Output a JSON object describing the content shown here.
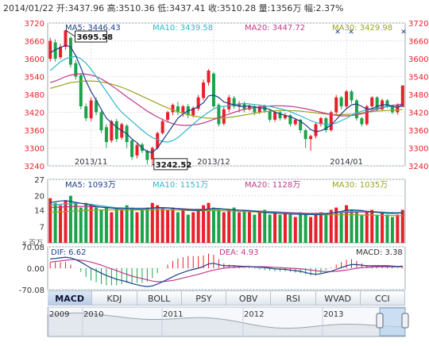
{
  "header": {
    "date": "2014/01/22",
    "open_label": "开:",
    "open": "3437.96",
    "high_label": "高:",
    "high": "3510.36",
    "low_label": "低:",
    "low": "3437.41",
    "close_label": "收:",
    "close": "3510.28",
    "volume_label": "量:",
    "volume": "1356万",
    "change_label": "幅:",
    "change": "2.37%"
  },
  "colors": {
    "up": "#e8202a",
    "down": "#1aa34a",
    "ma5": "#1c3f8a",
    "ma10": "#2fb7c8",
    "ma20": "#c03a8a",
    "ma30": "#9aa41e",
    "dif": "#1c3f8a",
    "dea": "#c03a8a"
  },
  "price_panel": {
    "legend": [
      {
        "label": "MA5: 3446.43",
        "color": "#1c3f8a"
      },
      {
        "label": "MA10: 3439.58",
        "color": "#2fb7c8"
      },
      {
        "label": "MA20: 3447.72",
        "color": "#c03a8a"
      },
      {
        "label": "MA30: 3429.98",
        "color": "#9aa41e"
      }
    ],
    "high_callout": "3695.58",
    "low_callout": "3242.52"
  },
  "volume_panel": {
    "legend": [
      {
        "label": "MA5: 1093万",
        "color": "#1c3f8a"
      },
      {
        "label": "MA10: 1151万",
        "color": "#2fb7c8"
      },
      {
        "label": "MA20: 1128万",
        "color": "#c03a8a"
      },
      {
        "label": "MA30: 1035万",
        "color": "#9aa41e"
      }
    ],
    "unit_label": "x 百万"
  },
  "macd_panel": {
    "dif_label": "DIF: 6.62",
    "dea_label": "DEA: 4.93",
    "macd_label": "MACD: 3.38"
  },
  "tabs": [
    "MACD",
    "KDJ",
    "BOLL",
    "PSY",
    "OBV",
    "RSI",
    "WVAD",
    "CCI"
  ],
  "overview": {
    "years": [
      "2009",
      "2010",
      "2011",
      "2012",
      "2013"
    ]
  },
  "chart_data": [
    {
      "type": "candlestick",
      "ylim": [
        3240,
        3720
      ],
      "yticks": [
        3240,
        3300,
        3360,
        3420,
        3480,
        3540,
        3600,
        3660,
        3720
      ],
      "xticks": [
        "2013/11",
        "2013/12",
        "2014/01"
      ],
      "xtick_index": [
        8,
        32,
        58
      ],
      "candles": [
        [
          3600,
          3660,
          3590,
          3670
        ],
        [
          3655,
          3600,
          3590,
          3665
        ],
        [
          3605,
          3640,
          3598,
          3650
        ],
        [
          3640,
          3695,
          3630,
          3696
        ],
        [
          3670,
          3580,
          3570,
          3675
        ],
        [
          3585,
          3540,
          3530,
          3595
        ],
        [
          3545,
          3440,
          3430,
          3550
        ],
        [
          3440,
          3400,
          3390,
          3450
        ],
        [
          3400,
          3460,
          3390,
          3470
        ],
        [
          3460,
          3420,
          3410,
          3470
        ],
        [
          3420,
          3360,
          3350,
          3425
        ],
        [
          3370,
          3320,
          3300,
          3380
        ],
        [
          3325,
          3390,
          3318,
          3395
        ],
        [
          3390,
          3330,
          3320,
          3398
        ],
        [
          3335,
          3380,
          3328,
          3385
        ],
        [
          3375,
          3320,
          3300,
          3380
        ],
        [
          3325,
          3270,
          3260,
          3330
        ],
        [
          3275,
          3310,
          3265,
          3318
        ],
        [
          3312,
          3290,
          3282,
          3318
        ],
        [
          3290,
          3260,
          3245,
          3295
        ],
        [
          3262,
          3300,
          3243,
          3305
        ],
        [
          3300,
          3350,
          3295,
          3355
        ],
        [
          3350,
          3390,
          3345,
          3398
        ],
        [
          3395,
          3420,
          3385,
          3425
        ],
        [
          3420,
          3445,
          3410,
          3450
        ],
        [
          3440,
          3420,
          3410,
          3455
        ],
        [
          3420,
          3440,
          3405,
          3445
        ],
        [
          3440,
          3410,
          3400,
          3448
        ],
        [
          3410,
          3435,
          3402,
          3440
        ],
        [
          3432,
          3470,
          3425,
          3478
        ],
        [
          3468,
          3520,
          3460,
          3530
        ],
        [
          3520,
          3560,
          3510,
          3565
        ],
        [
          3550,
          3440,
          3435,
          3555
        ],
        [
          3445,
          3380,
          3372,
          3450
        ],
        [
          3382,
          3430,
          3376,
          3438
        ],
        [
          3430,
          3470,
          3420,
          3478
        ],
        [
          3468,
          3440,
          3432,
          3475
        ],
        [
          3440,
          3450,
          3420,
          3458
        ],
        [
          3450,
          3430,
          3420,
          3456
        ],
        [
          3430,
          3440,
          3425,
          3445
        ],
        [
          3440,
          3420,
          3410,
          3448
        ],
        [
          3420,
          3440,
          3414,
          3446
        ],
        [
          3440,
          3425,
          3418,
          3446
        ],
        [
          3425,
          3395,
          3388,
          3430
        ],
        [
          3395,
          3420,
          3388,
          3426
        ],
        [
          3420,
          3400,
          3392,
          3425
        ],
        [
          3400,
          3410,
          3395,
          3418
        ],
        [
          3410,
          3380,
          3372,
          3414
        ],
        [
          3380,
          3395,
          3375,
          3400
        ],
        [
          3395,
          3360,
          3350,
          3398
        ],
        [
          3360,
          3330,
          3300,
          3365
        ],
        [
          3330,
          3340,
          3290,
          3345
        ],
        [
          3340,
          3380,
          3332,
          3385
        ],
        [
          3380,
          3400,
          3372,
          3405
        ],
        [
          3400,
          3360,
          3352,
          3404
        ],
        [
          3360,
          3420,
          3355,
          3425
        ],
        [
          3420,
          3470,
          3412,
          3478
        ],
        [
          3470,
          3440,
          3430,
          3475
        ],
        [
          3440,
          3490,
          3432,
          3495
        ],
        [
          3490,
          3460,
          3450,
          3495
        ],
        [
          3460,
          3400,
          3392,
          3465
        ],
        [
          3400,
          3380,
          3372,
          3405
        ],
        [
          3380,
          3440,
          3375,
          3445
        ],
        [
          3440,
          3470,
          3432,
          3474
        ],
        [
          3470,
          3430,
          3422,
          3474
        ],
        [
          3430,
          3460,
          3425,
          3466
        ],
        [
          3460,
          3440,
          3434,
          3464
        ],
        [
          3440,
          3420,
          3414,
          3446
        ],
        [
          3420,
          3445,
          3412,
          3450
        ],
        [
          3438,
          3510,
          3437,
          3510
        ]
      ],
      "ma5": [
        3620,
        3630,
        3638,
        3645,
        3640,
        3610,
        3570,
        3525,
        3490,
        3460,
        3430,
        3400,
        3385,
        3370,
        3358,
        3348,
        3330,
        3318,
        3300,
        3288,
        3285,
        3300,
        3325,
        3350,
        3375,
        3400,
        3415,
        3425,
        3430,
        3440,
        3452,
        3475,
        3478,
        3470,
        3455,
        3450,
        3445,
        3440,
        3440,
        3442,
        3438,
        3435,
        3434,
        3430,
        3420,
        3415,
        3410,
        3405,
        3398,
        3390,
        3378,
        3362,
        3355,
        3358,
        3366,
        3378,
        3395,
        3415,
        3432,
        3445,
        3448,
        3440,
        3430,
        3432,
        3440,
        3445,
        3446,
        3440,
        3436,
        3446
      ],
      "ma10": [
        3560,
        3575,
        3590,
        3600,
        3605,
        3608,
        3600,
        3585,
        3565,
        3540,
        3515,
        3490,
        3465,
        3440,
        3420,
        3405,
        3390,
        3375,
        3360,
        3346,
        3335,
        3328,
        3322,
        3320,
        3325,
        3335,
        3350,
        3365,
        3380,
        3395,
        3408,
        3420,
        3432,
        3438,
        3440,
        3442,
        3445,
        3448,
        3450,
        3448,
        3446,
        3444,
        3442,
        3440,
        3436,
        3432,
        3428,
        3422,
        3415,
        3408,
        3400,
        3392,
        3386,
        3382,
        3380,
        3380,
        3384,
        3392,
        3400,
        3410,
        3418,
        3424,
        3428,
        3430,
        3434,
        3438,
        3440,
        3438,
        3438,
        3440
      ],
      "ma20": [
        3520,
        3525,
        3532,
        3540,
        3545,
        3548,
        3550,
        3548,
        3545,
        3540,
        3532,
        3522,
        3510,
        3498,
        3485,
        3472,
        3460,
        3448,
        3436,
        3424,
        3414,
        3404,
        3396,
        3388,
        3382,
        3378,
        3376,
        3376,
        3378,
        3380,
        3384,
        3390,
        3396,
        3402,
        3408,
        3414,
        3420,
        3425,
        3430,
        3433,
        3436,
        3438,
        3440,
        3441,
        3442,
        3442,
        3441,
        3440,
        3438,
        3435,
        3432,
        3428,
        3424,
        3420,
        3416,
        3412,
        3410,
        3408,
        3408,
        3409,
        3412,
        3415,
        3420,
        3425,
        3430,
        3435,
        3440,
        3443,
        3445,
        3448
      ],
      "ma30": [
        3500,
        3505,
        3510,
        3515,
        3520,
        3522,
        3524,
        3525,
        3525,
        3524,
        3522,
        3519,
        3515,
        3510,
        3504,
        3497,
        3490,
        3482,
        3474,
        3466,
        3458,
        3450,
        3442,
        3435,
        3428,
        3422,
        3417,
        3412,
        3408,
        3405,
        3402,
        3400,
        3400,
        3400,
        3401,
        3403,
        3405,
        3408,
        3411,
        3414,
        3417,
        3420,
        3422,
        3424,
        3425,
        3426,
        3426,
        3426,
        3425,
        3424,
        3422,
        3420,
        3418,
        3416,
        3414,
        3413,
        3412,
        3412,
        3413,
        3414,
        3416,
        3418,
        3420,
        3422,
        3424,
        3425,
        3426,
        3427,
        3428,
        3430
      ]
    },
    {
      "type": "bar",
      "ylim": [
        0,
        27
      ],
      "yticks": [
        7,
        14,
        20,
        27
      ],
      "values": [
        19,
        17,
        16,
        18,
        20,
        17,
        15,
        17,
        16,
        15,
        14,
        15,
        13,
        15,
        14,
        16,
        15,
        13,
        14,
        15,
        17,
        16,
        15,
        14,
        15,
        13,
        14,
        12,
        13,
        14,
        16,
        17,
        15,
        14,
        13,
        14,
        15,
        13,
        14,
        13,
        12,
        13,
        14,
        12,
        13,
        12,
        13,
        12,
        11,
        13,
        12,
        11,
        12,
        13,
        12,
        14,
        15,
        13,
        16,
        14,
        13,
        12,
        13,
        14,
        12,
        13,
        12,
        11,
        12,
        14
      ],
      "ma5": [
        17,
        17.5,
        17.8,
        18,
        17.6,
        17.2,
        16.8,
        16.5,
        16,
        15.5,
        15.2,
        15,
        14.8,
        14.6,
        14.5,
        14.6,
        14.5,
        14.4,
        14.4,
        14.6,
        14.8,
        15,
        15,
        14.9,
        14.7,
        14.5,
        14.2,
        14,
        13.8,
        13.8,
        14,
        14.4,
        14.6,
        14.6,
        14.4,
        14.2,
        14,
        13.9,
        13.8,
        13.6,
        13.4,
        13.2,
        13,
        12.8,
        12.7,
        12.6,
        12.4,
        12.3,
        12.2,
        12.2,
        12.1,
        12,
        12,
        12.1,
        12.3,
        12.6,
        13,
        13.4,
        13.8,
        14,
        13.9,
        13.7,
        13.4,
        13.2,
        13,
        12.8,
        12.6,
        12.5,
        12.6,
        12.8
      ],
      "ma10": [
        16,
        16.2,
        16.4,
        16.6,
        16.7,
        16.8,
        16.8,
        16.6,
        16.4,
        16.1,
        15.8,
        15.5,
        15.2,
        15,
        14.9,
        14.8,
        14.7,
        14.6,
        14.6,
        14.6,
        14.7,
        14.8,
        14.8,
        14.7,
        14.6,
        14.5,
        14.4,
        14.2,
        14.1,
        14,
        14,
        14.1,
        14.2,
        14.2,
        14.2,
        14.1,
        14,
        13.9,
        13.8,
        13.7,
        13.6,
        13.4,
        13.2,
        13.1,
        13,
        12.8,
        12.7,
        12.6,
        12.5,
        12.4,
        12.3,
        12.3,
        12.3,
        12.4,
        12.5,
        12.7,
        12.9,
        13.1,
        13.3,
        13.4,
        13.5,
        13.5,
        13.4,
        13.3,
        13.2,
        13.1,
        13,
        12.9,
        12.8,
        12.8
      ],
      "ma20": [
        15,
        15.1,
        15.2,
        15.3,
        15.4,
        15.5,
        15.5,
        15.5,
        15.4,
        15.3,
        15.2,
        15.1,
        15,
        14.9,
        14.8,
        14.8,
        14.7,
        14.7,
        14.7,
        14.7,
        14.7,
        14.7,
        14.7,
        14.7,
        14.6,
        14.6,
        14.5,
        14.4,
        14.3,
        14.3,
        14.3,
        14.3,
        14.3,
        14.2,
        14.2,
        14.1,
        14,
        13.9,
        13.8,
        13.7,
        13.6,
        13.5,
        13.4,
        13.3,
        13.2,
        13.1,
        13,
        12.9,
        12.8,
        12.7,
        12.6,
        12.6,
        12.6,
        12.6,
        12.6,
        12.7,
        12.8,
        12.9,
        13,
        13,
        13.1,
        13.1,
        13.1,
        13.1,
        13,
        13,
        12.9,
        12.9,
        12.9,
        12.9
      ],
      "ma30": [
        13,
        13.1,
        13.2,
        13.3,
        13.4,
        13.5,
        13.6,
        13.7,
        13.8,
        13.9,
        14,
        14,
        14,
        14,
        14,
        14,
        14,
        14,
        14,
        14,
        14,
        14,
        14,
        14,
        14,
        13.9,
        13.9,
        13.8,
        13.8,
        13.7,
        13.7,
        13.7,
        13.7,
        13.6,
        13.6,
        13.5,
        13.5,
        13.4,
        13.3,
        13.2,
        13.1,
        13,
        12.9,
        12.8,
        12.7,
        12.6,
        12.5,
        12.4,
        12.3,
        12.2,
        12.1,
        12,
        12,
        11.9,
        11.9,
        11.9,
        11.9,
        11.9,
        11.9,
        11.9,
        11.9,
        11.8,
        11.8,
        11.8,
        11.7,
        11.7,
        11.6,
        11.6,
        11.5,
        11.5
      ]
    },
    {
      "type": "line",
      "ylim": [
        -70.08,
        70.08
      ],
      "yticks": [
        -70.08,
        0.0,
        70.08
      ],
      "ytick_labels": [
        "-70.08",
        "0.00",
        "70.08"
      ],
      "dif": [
        30,
        32,
        34,
        36,
        34,
        28,
        20,
        10,
        0,
        -8,
        -16,
        -24,
        -30,
        -36,
        -40,
        -44,
        -50,
        -54,
        -58,
        -60,
        -58,
        -52,
        -44,
        -36,
        -28,
        -20,
        -14,
        -8,
        -4,
        0,
        6,
        14,
        16,
        12,
        8,
        8,
        8,
        7,
        6,
        6,
        4,
        3,
        2,
        0,
        -2,
        -3,
        -4,
        -6,
        -8,
        -10,
        -14,
        -18,
        -20,
        -18,
        -14,
        -10,
        -4,
        2,
        8,
        12,
        12,
        10,
        8,
        8,
        8,
        8,
        8,
        7,
        6,
        6.62
      ],
      "dea": [
        20,
        22,
        24,
        26,
        28,
        28,
        26,
        24,
        20,
        15,
        10,
        4,
        -2,
        -8,
        -14,
        -20,
        -26,
        -30,
        -34,
        -38,
        -42,
        -44,
        -44,
        -42,
        -40,
        -36,
        -32,
        -28,
        -24,
        -20,
        -15,
        -10,
        -6,
        -3,
        0,
        2,
        3,
        4,
        5,
        5,
        5,
        5,
        5,
        4,
        3,
        2,
        1,
        0,
        -1,
        -2,
        -4,
        -6,
        -8,
        -10,
        -11,
        -11,
        -10,
        -8,
        -6,
        -3,
        0,
        2,
        3,
        4,
        5,
        5,
        5,
        5,
        5,
        4.93
      ],
      "macd": [
        20,
        20,
        20,
        20,
        12,
        0,
        -12,
        -28,
        -40,
        -46,
        -52,
        -56,
        -56,
        -56,
        -52,
        -48,
        -48,
        -48,
        -48,
        -44,
        -32,
        -16,
        0,
        12,
        24,
        32,
        36,
        40,
        40,
        40,
        42,
        48,
        44,
        30,
        16,
        12,
        10,
        6,
        2,
        2,
        -2,
        -4,
        -6,
        -8,
        -10,
        -10,
        -10,
        -12,
        -14,
        -16,
        -20,
        -24,
        -24,
        -16,
        -6,
        2,
        12,
        20,
        28,
        30,
        24,
        16,
        10,
        8,
        6,
        6,
        6,
        4,
        2,
        3.38
      ]
    }
  ]
}
